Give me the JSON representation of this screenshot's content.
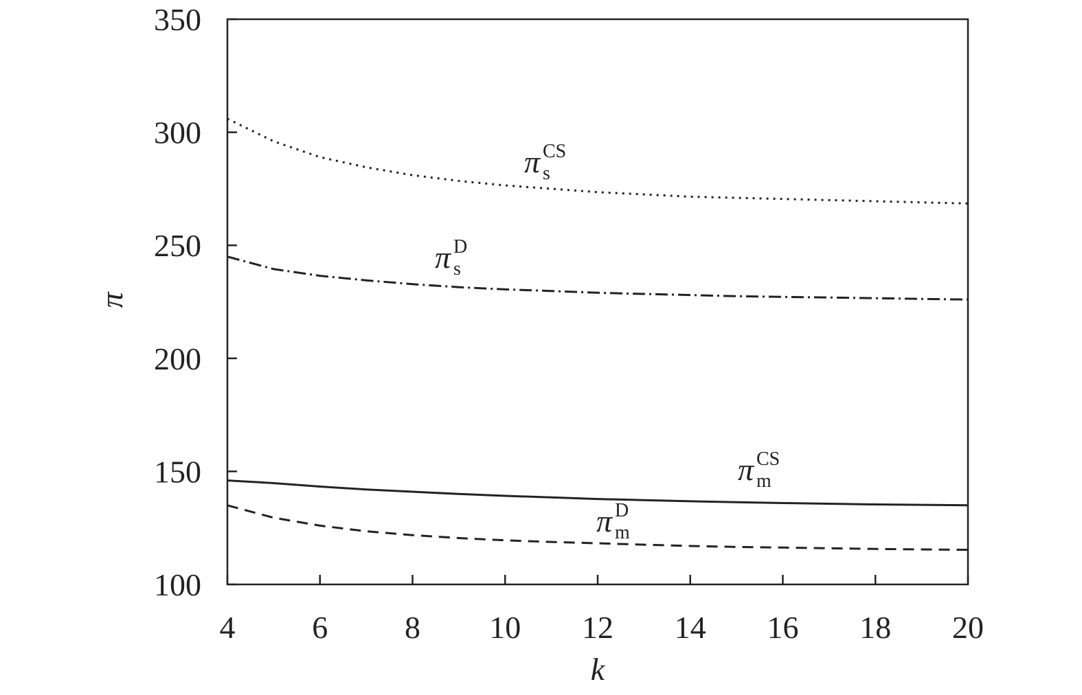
{
  "chart_data": {
    "type": "line",
    "title": "",
    "xlabel": "k",
    "ylabel": "π",
    "xlim": [
      4,
      20
    ],
    "ylim": [
      100,
      350
    ],
    "x_ticks": [
      4,
      6,
      8,
      10,
      12,
      14,
      16,
      18,
      20
    ],
    "y_ticks": [
      100,
      150,
      200,
      250,
      300,
      350
    ],
    "grid": false,
    "x": [
      4,
      5,
      6,
      7,
      8,
      9,
      10,
      11,
      12,
      13,
      14,
      15,
      16,
      17,
      18,
      19,
      20
    ],
    "series": [
      {
        "name": "π_s^CS",
        "label": {
          "base": "π",
          "sup": "CS",
          "sub": "s"
        },
        "line_style": "dotted",
        "values": [
          306,
          296,
          289,
          284.5,
          281,
          278.5,
          276.5,
          275,
          273.5,
          272.5,
          271.5,
          271,
          270.5,
          270,
          269.5,
          269,
          268.5
        ]
      },
      {
        "name": "π_s^D",
        "label": {
          "base": "π",
          "sup": "D",
          "sub": "s"
        },
        "line_style": "dash-dot",
        "values": [
          245,
          239.5,
          236.5,
          234.5,
          232.8,
          231.5,
          230.5,
          229.8,
          229,
          228.5,
          228,
          227.5,
          227.2,
          226.9,
          226.6,
          226.3,
          226
        ]
      },
      {
        "name": "π_m^CS",
        "label": {
          "base": "π",
          "sup": "CS",
          "sub": "m"
        },
        "line_style": "solid",
        "values": [
          146,
          144.8,
          143.3,
          142,
          141,
          140,
          139.2,
          138.5,
          137.8,
          137.3,
          136.8,
          136.4,
          136,
          135.7,
          135.4,
          135.2,
          135
        ]
      },
      {
        "name": "π_m^D",
        "label": {
          "base": "π",
          "sup": "D",
          "sub": "m"
        },
        "line_style": "dashed",
        "values": [
          135,
          129.5,
          126,
          123.5,
          121.8,
          120.5,
          119.5,
          118.8,
          118.2,
          117.6,
          117,
          116.6,
          116.3,
          116,
          115.7,
          115.5,
          115.3
        ]
      }
    ]
  }
}
